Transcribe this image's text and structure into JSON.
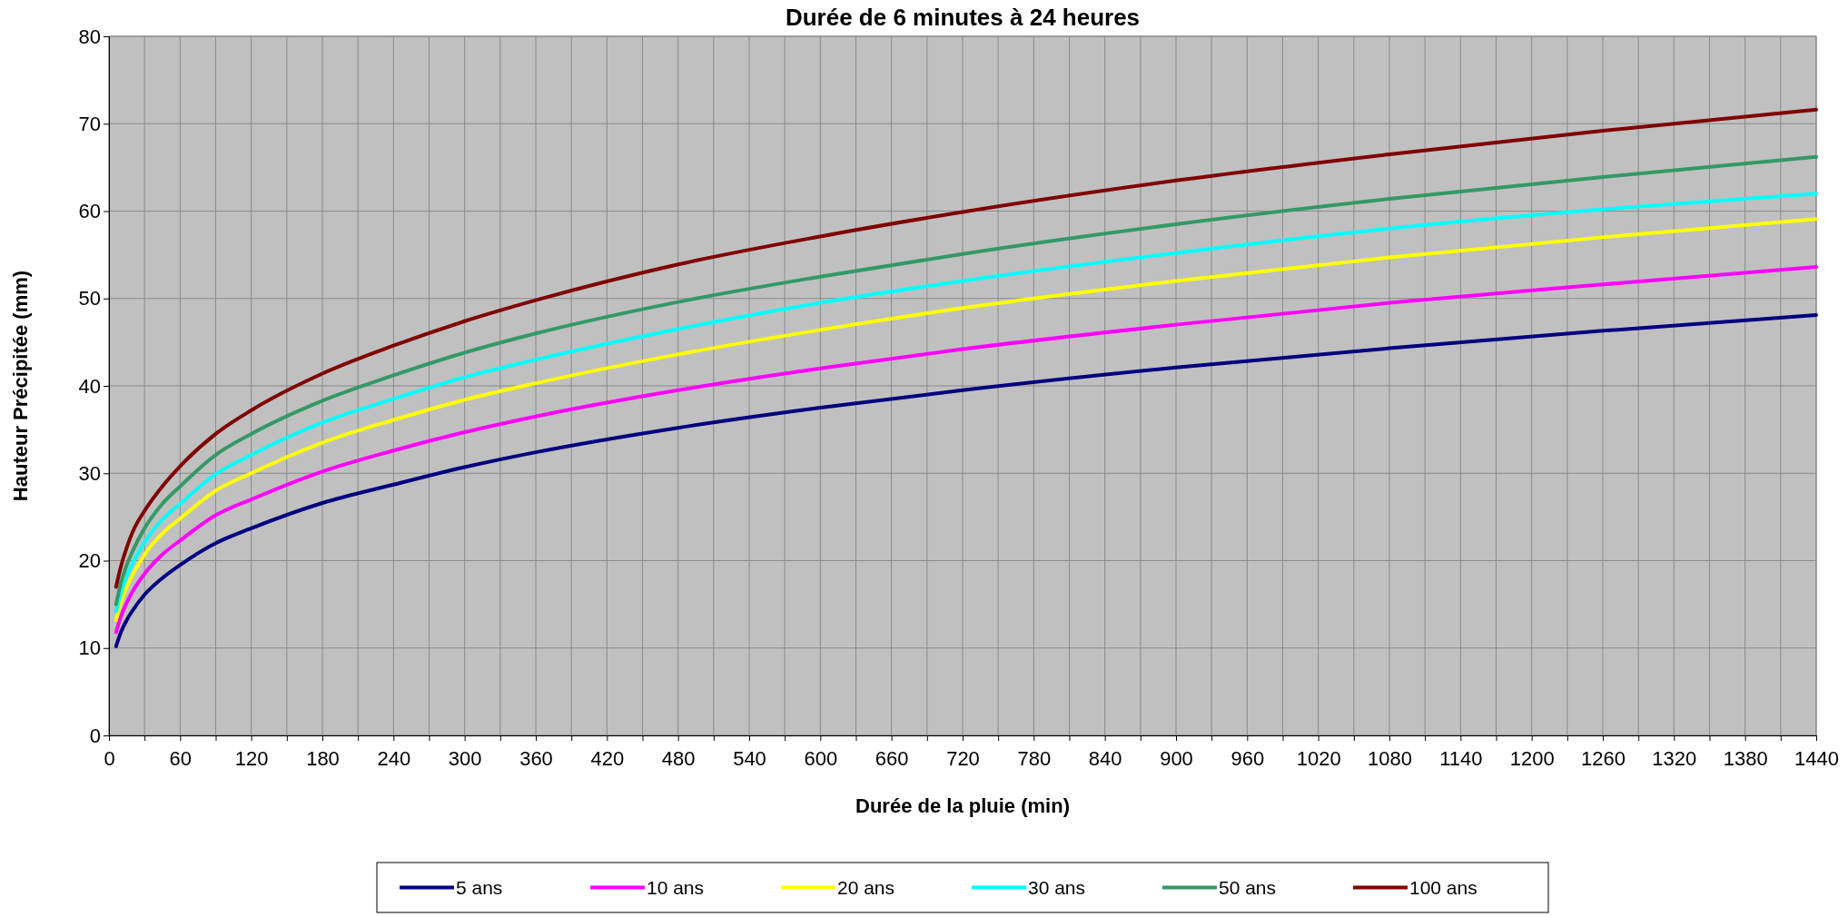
{
  "chart_data": {
    "type": "line",
    "title": "Durée de 6 minutes à 24 heures",
    "xlabel": "Durée de la pluie (min)",
    "ylabel": "Hauteur Précipitée (mm)",
    "x": [
      6,
      10,
      15,
      20,
      30,
      45,
      60,
      90,
      120,
      180,
      240,
      300,
      360,
      480,
      600,
      720,
      900,
      1080,
      1260,
      1440
    ],
    "xlim": [
      0,
      1440
    ],
    "ylim": [
      0,
      80
    ],
    "yticks": [
      0,
      10,
      20,
      30,
      40,
      50,
      60,
      70,
      80
    ],
    "xticks": [
      0,
      {
        "value": 30,
        "label": null
      },
      60,
      {
        "value": 90,
        "label": null
      },
      120,
      {
        "value": 150,
        "label": null
      },
      180,
      {
        "value": 210,
        "label": null
      },
      240,
      {
        "value": 270,
        "label": null
      },
      300,
      {
        "value": 330,
        "label": null
      },
      360,
      {
        "value": 390,
        "label": null
      },
      420,
      {
        "value": 450,
        "label": null
      },
      480,
      {
        "value": 510,
        "label": null
      },
      540,
      {
        "value": 570,
        "label": null
      },
      600,
      {
        "value": 630,
        "label": null
      },
      660,
      {
        "value": 690,
        "label": null
      },
      720,
      {
        "value": 750,
        "label": null
      },
      780,
      {
        "value": 810,
        "label": null
      },
      840,
      {
        "value": 870,
        "label": null
      },
      900,
      {
        "value": 930,
        "label": null
      },
      960,
      {
        "value": 990,
        "label": null
      },
      1020,
      {
        "value": 1050,
        "label": null
      },
      1080,
      {
        "value": 1110,
        "label": null
      },
      1140,
      {
        "value": 1170,
        "label": null
      },
      1200,
      {
        "value": 1230,
        "label": null
      },
      1260,
      {
        "value": 1290,
        "label": null
      },
      1320,
      {
        "value": 1350,
        "label": null
      },
      1380,
      {
        "value": 1410,
        "label": null
      },
      1440
    ],
    "grid": true,
    "legend": "bottom",
    "marker": "none",
    "line_style": "solid",
    "series": [
      {
        "name": "5 ans",
        "color": "#000080",
        "values": [
          10.2,
          11.8,
          13.2,
          14.3,
          16.1,
          18.0,
          19.5,
          22.0,
          23.7,
          26.6,
          28.7,
          30.7,
          32.4,
          35.2,
          37.5,
          39.5,
          42.1,
          44.3,
          46.3,
          48.1
        ]
      },
      {
        "name": "10 ans",
        "color": "#ff00ff",
        "values": [
          11.8,
          13.6,
          15.2,
          16.5,
          18.5,
          20.7,
          22.3,
          25.2,
          27.0,
          30.2,
          32.6,
          34.7,
          36.5,
          39.5,
          42.0,
          44.2,
          47.0,
          49.5,
          51.6,
          53.6
        ]
      },
      {
        "name": "20 ans",
        "color": "#ffff00",
        "values": [
          13.2,
          15.2,
          17.0,
          18.4,
          20.7,
          23.1,
          24.8,
          28.0,
          30.0,
          33.5,
          36.1,
          38.4,
          40.3,
          43.6,
          46.4,
          48.9,
          52.0,
          54.7,
          57.0,
          59.1
        ]
      },
      {
        "name": "30 ans",
        "color": "#00ffff",
        "values": [
          14.2,
          16.3,
          18.2,
          19.7,
          22.1,
          24.7,
          26.5,
          29.9,
          32.1,
          35.8,
          38.5,
          41.0,
          43.0,
          46.5,
          49.5,
          52.0,
          55.2,
          58.0,
          60.2,
          62.0
        ]
      },
      {
        "name": "50 ans",
        "color": "#339966",
        "values": [
          15.0,
          17.4,
          19.5,
          21.1,
          23.7,
          26.5,
          28.5,
          32.1,
          34.5,
          38.3,
          41.2,
          43.8,
          46.0,
          49.6,
          52.5,
          55.1,
          58.5,
          61.4,
          63.9,
          66.2
        ]
      },
      {
        "name": "100 ans",
        "color": "#800000",
        "values": [
          17.0,
          19.3,
          21.5,
          23.3,
          25.7,
          28.5,
          30.8,
          34.5,
          37.2,
          41.4,
          44.6,
          47.4,
          49.8,
          53.9,
          57.1,
          59.9,
          63.5,
          66.5,
          69.2,
          71.6
        ]
      }
    ]
  }
}
